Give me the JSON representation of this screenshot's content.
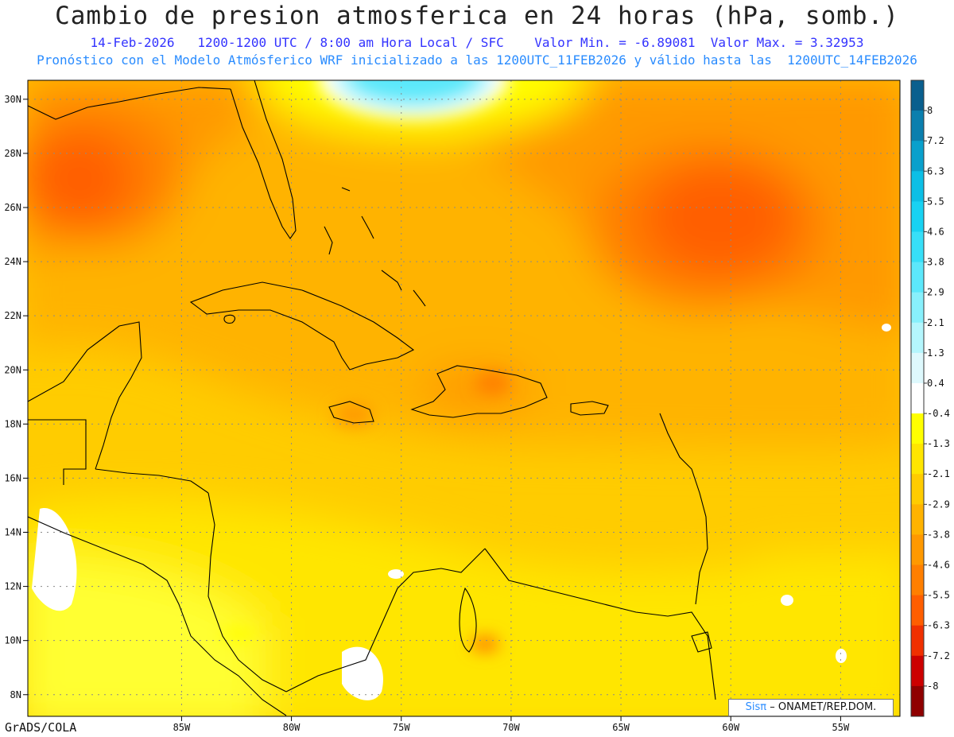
{
  "title": "Cambio de presion atmosferica en 24 horas (hPa, somb.)",
  "subtitle_line1": "14-Feb-2026   1200-1200 UTC / 8:00 am Hora Local / SFC    Valor Min. = -6.89081  Valor Max. = 3.32953",
  "subtitle_line2": "Pronóstico con el Modelo Atmósferico WRF inicializado a las 1200UTC_11FEB2026 y válido hasta las  1200UTC_14FEB2026",
  "footer": "GrADS/COLA",
  "credit": {
    "logo": "Sisπ",
    "text": "– ONAMET/REP.DOM."
  },
  "map": {
    "lat_labels": [
      "30N",
      "28N",
      "26N",
      "24N",
      "22N",
      "20N",
      "18N",
      "16N",
      "14N",
      "12N",
      "10N",
      "8N"
    ],
    "lat_values": [
      30,
      28,
      26,
      24,
      22,
      20,
      18,
      16,
      14,
      12,
      10,
      8
    ],
    "lon_labels": [
      "85W",
      "80W",
      "75W",
      "70W",
      "65W",
      "60W",
      "55W"
    ],
    "lon_values": [
      -85,
      -80,
      -75,
      -70,
      -65,
      -60,
      -55
    ],
    "lat_range": [
      7.2,
      30.7
    ],
    "lon_range": [
      -92,
      -52.3
    ]
  },
  "colorbar": {
    "labels": [
      "8",
      "7.2",
      "6.3",
      "5.5",
      "4.6",
      "3.8",
      "2.9",
      "2.1",
      "1.3",
      "0.4",
      "-0.4",
      "-1.3",
      "-2.1",
      "-2.9",
      "-3.8",
      "-4.6",
      "-5.5",
      "-6.3",
      "-7.2",
      "-8"
    ],
    "colors": [
      "#0a5f8e",
      "#0b7fae",
      "#0aa0cc",
      "#0cbfe6",
      "#18d2f2",
      "#37dff8",
      "#5ce8fb",
      "#88f0fc",
      "#b4f6fd",
      "#def9fd",
      "#ffffff",
      "#ffff00",
      "#ffe600",
      "#ffcc00",
      "#ffb300",
      "#ff9900",
      "#ff7f00",
      "#ff5e00",
      "#f03000",
      "#cc0000",
      "#8f0000"
    ]
  }
}
